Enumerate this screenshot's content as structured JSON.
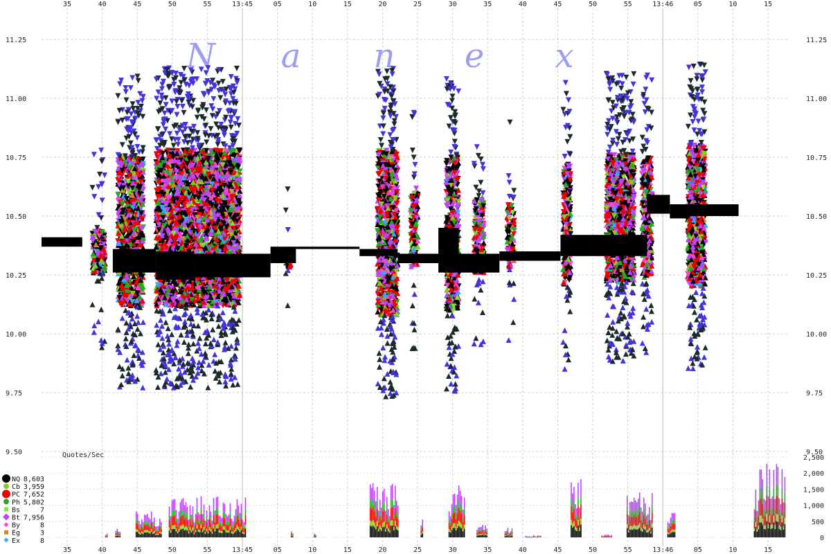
{
  "chart_data": {
    "type": "scatter",
    "watermark": [
      "N",
      "a",
      "n",
      "e",
      "x"
    ],
    "x_tick_labels": [
      "35",
      "40",
      "45",
      "50",
      "55",
      "13:45",
      "05",
      "10",
      "15",
      "20",
      "25",
      "30",
      "35",
      "40",
      "45",
      "50",
      "55",
      "13:46",
      "05",
      "10",
      "15"
    ],
    "y_axis": {
      "ylim": [
        9.5,
        11.3
      ],
      "ticks": [
        "9.50",
        "9.75",
        "10.00",
        "10.25",
        "10.50",
        "10.75",
        "11.00",
        "11.25"
      ]
    },
    "volume_panel": {
      "label": "Quotes/Sec",
      "ticks": [
        "0",
        "500",
        "1,000",
        "1,500",
        "2,000",
        "2,500"
      ],
      "ylim": [
        0,
        2500
      ]
    },
    "legend": [
      {
        "code": "NQ",
        "count": "8,603",
        "color": "#000000"
      },
      {
        "code": "Cb",
        "count": "3,959",
        "color": "#88cc22"
      },
      {
        "code": "PC",
        "count": "7,652",
        "color": "#ee0000"
      },
      {
        "code": "Ph",
        "count": "5,802",
        "color": "#22aa22"
      },
      {
        "code": "Bs",
        "count": "7",
        "color": "#77ee33"
      },
      {
        "code": "Bt",
        "count": "7,956",
        "color": "#bb44ff"
      },
      {
        "code": "By",
        "count": "8",
        "color": "#ff44cc"
      },
      {
        "code": "Eg",
        "count": "3",
        "color": "#cc8833"
      },
      {
        "code": "Ex",
        "count": "8",
        "color": "#33aaff"
      }
    ],
    "nbbo_segments": [
      {
        "x0": 0.0,
        "x1": 1.6,
        "lo": 10.37,
        "hi": 10.41
      },
      {
        "x0": 2.8,
        "x1": 4.5,
        "lo": 10.26,
        "hi": 10.36
      },
      {
        "x0": 4.5,
        "x1": 6.0,
        "lo": 10.23,
        "hi": 10.35
      },
      {
        "x0": 6.0,
        "x1": 9.0,
        "lo": 10.24,
        "hi": 10.34
      },
      {
        "x0": 9.0,
        "x1": 10.0,
        "lo": 10.3,
        "hi": 10.37
      },
      {
        "x0": 10.0,
        "x1": 12.5,
        "lo": 10.36,
        "hi": 10.37
      },
      {
        "x0": 12.5,
        "x1": 14.0,
        "lo": 10.33,
        "hi": 10.36
      },
      {
        "x0": 14.0,
        "x1": 15.6,
        "lo": 10.3,
        "hi": 10.34
      },
      {
        "x0": 15.6,
        "x1": 16.4,
        "lo": 10.26,
        "hi": 10.45
      },
      {
        "x0": 16.4,
        "x1": 18.0,
        "lo": 10.26,
        "hi": 10.34
      },
      {
        "x0": 18.0,
        "x1": 20.4,
        "lo": 10.31,
        "hi": 10.35
      },
      {
        "x0": 20.4,
        "x1": 21.6,
        "lo": 10.33,
        "hi": 10.42
      },
      {
        "x0": 21.6,
        "x1": 23.8,
        "lo": 10.33,
        "hi": 10.42
      },
      {
        "x0": 23.8,
        "x1": 24.7,
        "lo": 10.51,
        "hi": 10.59
      },
      {
        "x0": 24.7,
        "x1": 25.4,
        "lo": 10.49,
        "hi": 10.55
      },
      {
        "x0": 25.4,
        "x1": 27.4,
        "lo": 10.5,
        "hi": 10.55
      }
    ],
    "bursts": [
      {
        "x0": 2.0,
        "x1": 2.5,
        "lo": 10.26,
        "hi": 10.44,
        "dense": 0.4
      },
      {
        "x0": 3.0,
        "x1": 4.0,
        "lo": 10.12,
        "hi": 10.75,
        "dense": 0.9
      },
      {
        "x0": 4.5,
        "x1": 7.8,
        "lo": 10.12,
        "hi": 10.78,
        "dense": 1.0
      },
      {
        "x0": 9.6,
        "x1": 9.8,
        "lo": 10.28,
        "hi": 10.36,
        "dense": 0.2
      },
      {
        "x0": 13.2,
        "x1": 14.0,
        "lo": 10.08,
        "hi": 10.78,
        "dense": 1.0
      },
      {
        "x0": 14.5,
        "x1": 14.8,
        "lo": 10.28,
        "hi": 10.62,
        "dense": 0.4
      },
      {
        "x0": 15.9,
        "x1": 16.4,
        "lo": 10.1,
        "hi": 10.75,
        "dense": 0.9
      },
      {
        "x0": 17.0,
        "x1": 17.4,
        "lo": 10.26,
        "hi": 10.58,
        "dense": 0.4
      },
      {
        "x0": 18.3,
        "x1": 18.6,
        "lo": 10.28,
        "hi": 10.55,
        "dense": 0.3
      },
      {
        "x0": 20.5,
        "x1": 20.8,
        "lo": 10.2,
        "hi": 10.72,
        "dense": 0.7
      },
      {
        "x0": 22.2,
        "x1": 23.3,
        "lo": 10.22,
        "hi": 10.76,
        "dense": 1.0
      },
      {
        "x0": 23.6,
        "x1": 24.0,
        "lo": 10.24,
        "hi": 10.75,
        "dense": 0.7
      },
      {
        "x0": 25.4,
        "x1": 26.1,
        "lo": 10.2,
        "hi": 10.8,
        "dense": 1.0
      }
    ],
    "volume": [
      {
        "x0": 2.5,
        "x1": 2.6,
        "peak": 160
      },
      {
        "x0": 2.9,
        "x1": 3.1,
        "peak": 300
      },
      {
        "x0": 3.7,
        "x1": 4.7,
        "peak": 900
      },
      {
        "x0": 5.0,
        "x1": 8.0,
        "peak": 1300
      },
      {
        "x0": 9.8,
        "x1": 9.9,
        "peak": 200
      },
      {
        "x0": 10.7,
        "x1": 10.8,
        "peak": 130
      },
      {
        "x0": 12.9,
        "x1": 14.0,
        "peak": 1700
      },
      {
        "x0": 14.9,
        "x1": 15.0,
        "peak": 600
      },
      {
        "x0": 16.0,
        "x1": 16.6,
        "peak": 1700
      },
      {
        "x0": 17.1,
        "x1": 17.5,
        "peak": 400
      },
      {
        "x0": 18.2,
        "x1": 18.5,
        "peak": 300
      },
      {
        "x0": 19.0,
        "x1": 19.6,
        "peak": 70
      },
      {
        "x0": 20.8,
        "x1": 21.2,
        "peak": 2000
      },
      {
        "x0": 22.0,
        "x1": 22.4,
        "peak": 90
      },
      {
        "x0": 23.0,
        "x1": 24.0,
        "peak": 1400
      },
      {
        "x0": 24.6,
        "x1": 24.9,
        "peak": 1100
      },
      {
        "x0": 28.0,
        "x1": 29.2,
        "peak": 2300
      }
    ]
  }
}
